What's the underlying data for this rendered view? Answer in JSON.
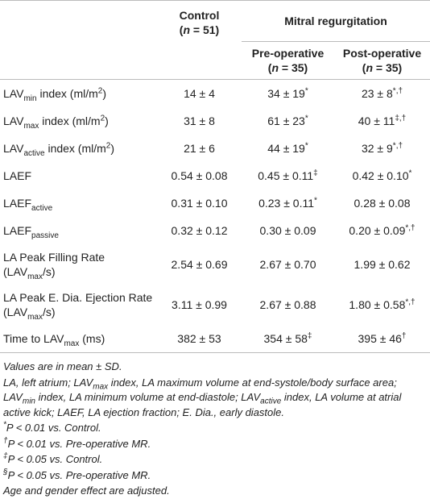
{
  "header": {
    "control": [
      {
        "t": "Control"
      }
    ],
    "control_n": [
      {
        "t": "("
      },
      {
        "t": "n",
        "f": "i"
      },
      {
        "t": " = 51)"
      }
    ],
    "group": [
      {
        "t": "Mitral regurgitation"
      }
    ],
    "pre": [
      {
        "t": "Pre-operative"
      }
    ],
    "pre_n": [
      {
        "t": "("
      },
      {
        "t": "n",
        "f": "i"
      },
      {
        "t": " = 35)"
      }
    ],
    "post": [
      {
        "t": "Post-operative"
      }
    ],
    "post_n": [
      {
        "t": "("
      },
      {
        "t": "n",
        "f": "i"
      },
      {
        "t": " = 35)"
      }
    ]
  },
  "rows": [
    [
      [
        {
          "t": "LAV"
        },
        {
          "t": "min",
          "f": "sub"
        },
        {
          "t": " index (ml/m"
        },
        {
          "t": "2",
          "f": "sup"
        },
        {
          "t": ")"
        }
      ],
      [
        {
          "t": "14 ± 4"
        }
      ],
      [
        {
          "t": "34 ± 19"
        },
        {
          "t": "*",
          "f": "sup"
        }
      ],
      [
        {
          "t": "23 ± 8"
        },
        {
          "t": "*,†",
          "f": "sup"
        }
      ]
    ],
    [
      [
        {
          "t": "LAV"
        },
        {
          "t": "max",
          "f": "sub"
        },
        {
          "t": " index (ml/m"
        },
        {
          "t": "2",
          "f": "sup"
        },
        {
          "t": ")"
        }
      ],
      [
        {
          "t": "31 ± 8"
        }
      ],
      [
        {
          "t": "61 ± 23"
        },
        {
          "t": "*",
          "f": "sup"
        }
      ],
      [
        {
          "t": "40 ± 11"
        },
        {
          "t": "‡,†",
          "f": "sup"
        }
      ]
    ],
    [
      [
        {
          "t": "LAV"
        },
        {
          "t": "active",
          "f": "sub"
        },
        {
          "t": " index (ml/m"
        },
        {
          "t": "2",
          "f": "sup"
        },
        {
          "t": ")"
        }
      ],
      [
        {
          "t": "21 ± 6"
        }
      ],
      [
        {
          "t": "44 ± 19"
        },
        {
          "t": "*",
          "f": "sup"
        }
      ],
      [
        {
          "t": "32 ± 9"
        },
        {
          "t": "*,†",
          "f": "sup"
        }
      ]
    ],
    [
      [
        {
          "t": "LAEF"
        }
      ],
      [
        {
          "t": "0.54 ± 0.08"
        }
      ],
      [
        {
          "t": "0.45 ± 0.11"
        },
        {
          "t": "‡",
          "f": "sup"
        }
      ],
      [
        {
          "t": "0.42 ± 0.10"
        },
        {
          "t": "*",
          "f": "sup"
        }
      ]
    ],
    [
      [
        {
          "t": "LAEF"
        },
        {
          "t": "active",
          "f": "sub"
        }
      ],
      [
        {
          "t": "0.31 ± 0.10"
        }
      ],
      [
        {
          "t": "0.23 ± 0.11"
        },
        {
          "t": "*",
          "f": "sup"
        }
      ],
      [
        {
          "t": "0.28 ± 0.08"
        }
      ]
    ],
    [
      [
        {
          "t": "LAEF"
        },
        {
          "t": "passive",
          "f": "sub"
        }
      ],
      [
        {
          "t": "0.32 ± 0.12"
        }
      ],
      [
        {
          "t": "0.30 ± 0.09"
        }
      ],
      [
        {
          "t": "0.20 ± 0.09"
        },
        {
          "t": "*,†",
          "f": "sup"
        }
      ]
    ],
    [
      [
        {
          "t": "LA Peak Filling Rate (LAV"
        },
        {
          "t": "max",
          "f": "sub"
        },
        {
          "t": "/s)"
        }
      ],
      [
        {
          "t": "2.54 ± 0.69"
        }
      ],
      [
        {
          "t": "2.67 ± 0.70"
        }
      ],
      [
        {
          "t": "1.99 ± 0.62"
        }
      ]
    ],
    [
      [
        {
          "t": "LA Peak E. Dia. Ejection Rate (LAV"
        },
        {
          "t": "max",
          "f": "sub"
        },
        {
          "t": "/s)"
        }
      ],
      [
        {
          "t": "3.11 ± 0.99"
        }
      ],
      [
        {
          "t": "2.67 ± 0.88"
        }
      ],
      [
        {
          "t": "1.80 ± 0.58"
        },
        {
          "t": "*,†",
          "f": "sup"
        }
      ]
    ],
    [
      [
        {
          "t": "Time to LAV"
        },
        {
          "t": "max",
          "f": "sub"
        },
        {
          "t": " (ms)"
        }
      ],
      [
        {
          "t": "382 ± 53"
        }
      ],
      [
        {
          "t": "354 ± 58"
        },
        {
          "t": "‡",
          "f": "sup"
        }
      ],
      [
        {
          "t": "395 ± 46"
        },
        {
          "t": "†",
          "f": "sup"
        }
      ]
    ]
  ],
  "footnotes": [
    [
      {
        "t": "Values are in mean ± SD."
      }
    ],
    [
      {
        "t": "LA, left atrium; LAV"
      },
      {
        "t": "max",
        "f": "sub"
      },
      {
        "t": " index, LA maximum volume at end-systole/body surface area; LAV"
      },
      {
        "t": "min",
        "f": "sub"
      },
      {
        "t": " index, LA minimum volume at end-diastole; LAV"
      },
      {
        "t": "active",
        "f": "sub"
      },
      {
        "t": " index, LA volume at atrial active kick; LAEF, LA ejection fraction; E. Dia., early diastole."
      }
    ],
    [
      {
        "t": "*",
        "f": "sup"
      },
      {
        "t": "P < 0.01 vs. Control."
      }
    ],
    [
      {
        "t": "†",
        "f": "sup"
      },
      {
        "t": "P < 0.01 vs. Pre-operative MR."
      }
    ],
    [
      {
        "t": "‡",
        "f": "sup"
      },
      {
        "t": "P < 0.05 vs. Control."
      }
    ],
    [
      {
        "t": "§",
        "f": "sup"
      },
      {
        "t": "P < 0.05 vs. Pre-operative MR."
      }
    ],
    [
      {
        "t": "Age and gender effect are adjusted."
      }
    ]
  ]
}
